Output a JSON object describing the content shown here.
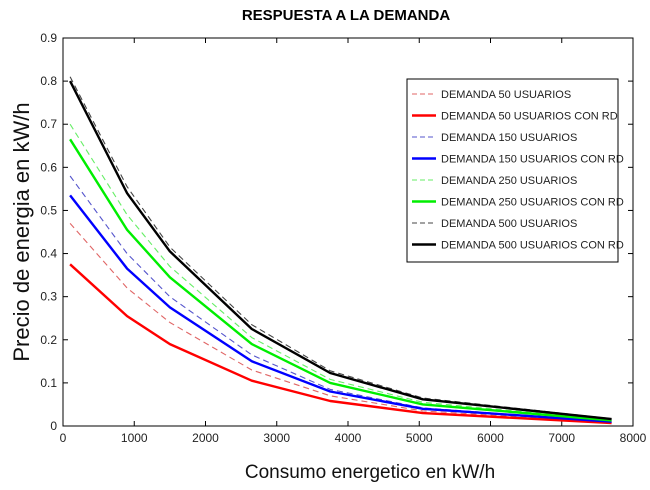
{
  "chart_data": {
    "type": "line",
    "title": "RESPUESTA A LA DEMANDA",
    "xlabel": "Consumo energetico en kW/h",
    "ylabel": "Precio de energia en kW/h",
    "xlim": [
      0,
      8000
    ],
    "ylim": [
      0,
      0.9
    ],
    "xticks": [
      "0",
      "1000",
      "2000",
      "3000",
      "4000",
      "5000",
      "6000",
      "7000",
      "8000"
    ],
    "yticks": [
      "0",
      "0.1",
      "0.2",
      "0.3",
      "0.4",
      "0.5",
      "0.6",
      "0.7",
      "0.8",
      "0.9"
    ],
    "grid": false,
    "legend_position": "top-right",
    "series": [
      {
        "name": "DEMANDA 50 USUARIOS",
        "color": "#e06666",
        "style": "dashed",
        "x": [
          100,
          900,
          1500,
          2650,
          3750,
          5050,
          7700
        ],
        "y": [
          0.47,
          0.32,
          0.24,
          0.13,
          0.07,
          0.035,
          0.008
        ]
      },
      {
        "name": "DEMANDA 50 USUARIOS CON RD",
        "color": "#ff0000",
        "style": "solid",
        "x": [
          100,
          900,
          1500,
          2650,
          3750,
          5050,
          7700
        ],
        "y": [
          0.375,
          0.255,
          0.19,
          0.105,
          0.058,
          0.03,
          0.007
        ]
      },
      {
        "name": "DEMANDA 150 USUARIOS",
        "color": "#5555cc",
        "style": "dashed",
        "x": [
          100,
          900,
          1500,
          2650,
          3750,
          5050,
          7700
        ],
        "y": [
          0.58,
          0.4,
          0.3,
          0.165,
          0.085,
          0.042,
          0.01
        ]
      },
      {
        "name": "DEMANDA 150 USUARIOS CON RD",
        "color": "#0000ff",
        "style": "solid",
        "x": [
          100,
          900,
          1500,
          2650,
          3750,
          5050,
          7700
        ],
        "y": [
          0.535,
          0.365,
          0.275,
          0.15,
          0.08,
          0.04,
          0.01
        ]
      },
      {
        "name": "DEMANDA 250 USUARIOS",
        "color": "#66ee66",
        "style": "dashed",
        "x": [
          100,
          900,
          1500,
          2650,
          3750,
          5050,
          7700
        ],
        "y": [
          0.7,
          0.49,
          0.37,
          0.205,
          0.108,
          0.055,
          0.014
        ]
      },
      {
        "name": "DEMANDA 250 USUARIOS CON RD",
        "color": "#00ee00",
        "style": "solid",
        "x": [
          100,
          900,
          1500,
          2650,
          3750,
          5050,
          7700
        ],
        "y": [
          0.665,
          0.455,
          0.345,
          0.19,
          0.1,
          0.05,
          0.013
        ]
      },
      {
        "name": "DEMANDA 500 USUARIOS",
        "color": "#444444",
        "style": "dashed",
        "x": [
          100,
          900,
          1500,
          2650,
          3750,
          5050,
          7700
        ],
        "y": [
          0.81,
          0.555,
          0.415,
          0.235,
          0.128,
          0.065,
          0.017
        ]
      },
      {
        "name": "DEMANDA 500 USUARIOS CON RD",
        "color": "#000000",
        "style": "solid",
        "x": [
          100,
          900,
          1500,
          2650,
          3750,
          5050,
          7700
        ],
        "y": [
          0.8,
          0.54,
          0.405,
          0.225,
          0.123,
          0.062,
          0.016
        ]
      }
    ]
  }
}
